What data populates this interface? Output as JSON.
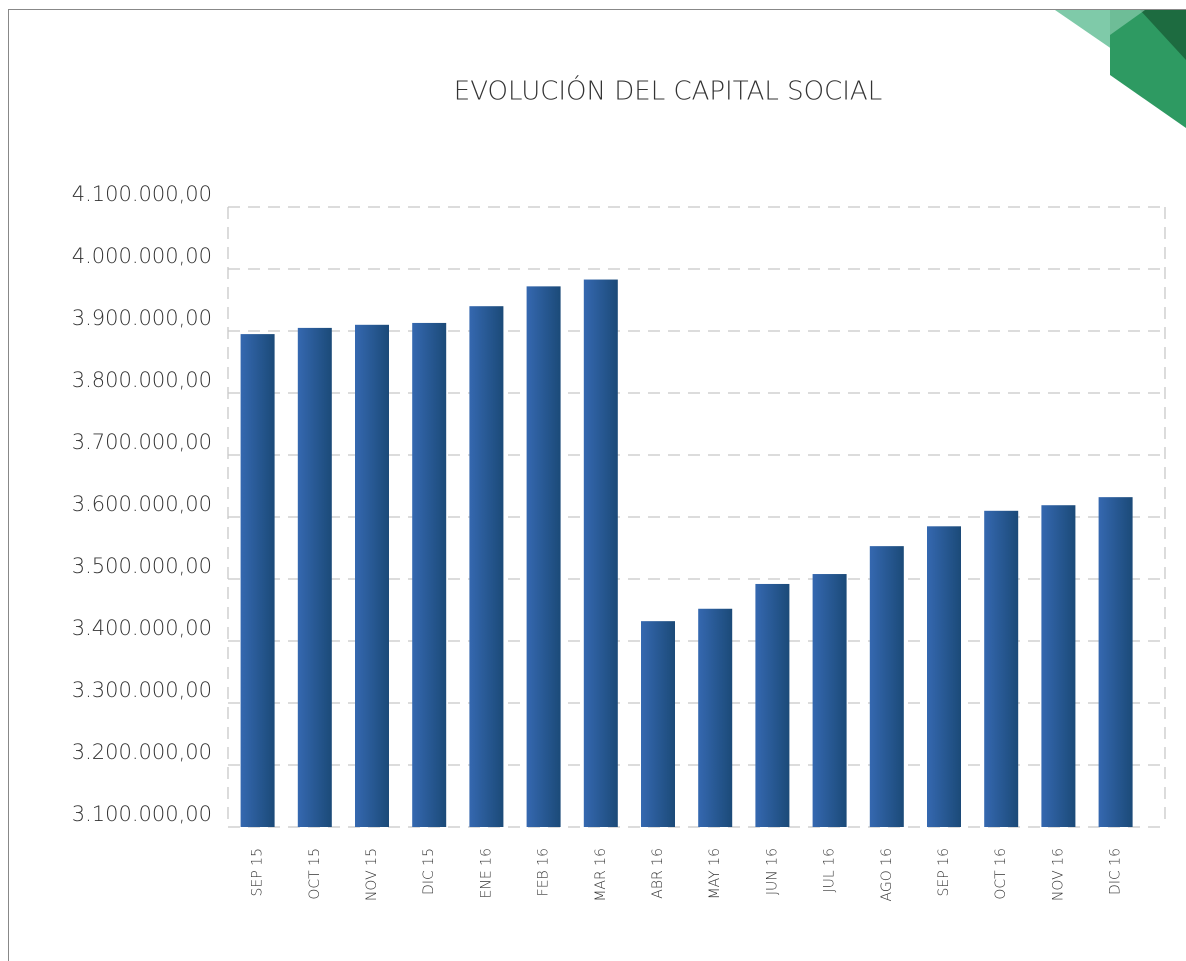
{
  "chart_data": {
    "type": "bar",
    "title": "EVOLUCIÓN DEL CAPITAL SOCIAL",
    "categories": [
      "SEP 15",
      "OCT 15",
      "NOV 15",
      "DIC 15",
      "ENE 16",
      "FEB 16",
      "MAR 16",
      "ABR 16",
      "MAY 16",
      "JUN 16",
      "JUL 16",
      "AGO 16",
      "SEP 16",
      "OCT 16",
      "NOV 16",
      "DIC 16"
    ],
    "values": [
      3895000,
      3905000,
      3910000,
      3913000,
      3940000,
      3972000,
      3983000,
      3432000,
      3452000,
      3492000,
      3508000,
      3553000,
      3585000,
      3610000,
      3619000,
      3632000
    ],
    "color": [
      "#3568b0",
      "#1b4a78"
    ],
    "ylim": [
      3100000,
      4100000
    ],
    "yticks": [
      {
        "value": 3100000,
        "label": "3.100.000,00"
      },
      {
        "value": 3200000,
        "label": "3.200.000,00"
      },
      {
        "value": 3300000,
        "label": "3.300.000,00"
      },
      {
        "value": 3400000,
        "label": "3.400.000,00"
      },
      {
        "value": 3500000,
        "label": "3.500.000,00"
      },
      {
        "value": 3600000,
        "label": "3.600.000,00"
      },
      {
        "value": 3700000,
        "label": "3.700.000,00"
      },
      {
        "value": 3800000,
        "label": "3.800.000,00"
      },
      {
        "value": 3900000,
        "label": "3.900.000,00"
      },
      {
        "value": 4000000,
        "label": "4.000.000,00"
      },
      {
        "value": 4100000,
        "label": "4.100.000,00"
      }
    ],
    "grid": true
  }
}
